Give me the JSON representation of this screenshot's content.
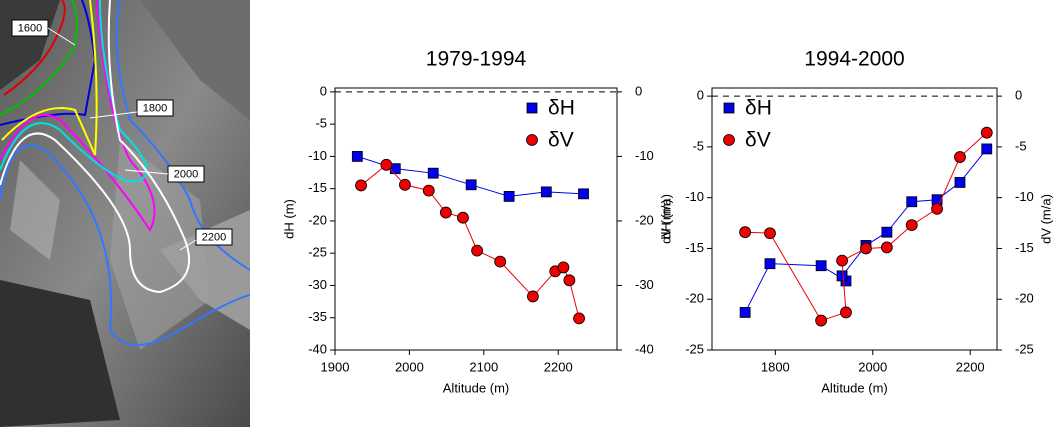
{
  "image": {
    "contour_labels": [
      "1600",
      "1800",
      "2000",
      "2200"
    ]
  },
  "chart_data": [
    {
      "type": "line",
      "title": "1979-1994",
      "x_label": "Altitude (m)",
      "y_label": "dH (m)",
      "y2_label": "dV (m/a)",
      "xlim": [
        1900,
        2279
      ],
      "xticks": [
        1900,
        2000,
        2100,
        2200
      ],
      "ylim": [
        -40,
        0.6
      ],
      "yticks": [
        0,
        -5,
        -10,
        -15,
        -20,
        -25,
        -30,
        -35,
        -40
      ],
      "y2lim": [
        -40,
        0.6
      ],
      "y2ticks": [
        0,
        -10,
        -20,
        -30,
        -40
      ],
      "zero_line": true,
      "legend": "upper right",
      "series": [
        {
          "name": "δH",
          "color": "#0000ee",
          "marker": "square",
          "x": [
            1930,
            1981,
            2032,
            2083,
            2134,
            2184,
            2234
          ],
          "values": [
            -10,
            -11.9,
            -12.6,
            -14.4,
            -16.2,
            -15.5,
            -15.8
          ]
        },
        {
          "name": "δV",
          "color": "#ee0000",
          "marker": "circle",
          "axis": "y2",
          "x": [
            1935,
            1969,
            1994,
            2026,
            2049,
            2072,
            2091,
            2122,
            2166,
            2196,
            2207,
            2215,
            2228
          ],
          "values": [
            -14.5,
            -11.3,
            -14.4,
            -15.3,
            -18.7,
            -19.5,
            -24.6,
            -26.3,
            -31.7,
            -27.8,
            -27.2,
            -29.2,
            -35.1
          ]
        }
      ]
    },
    {
      "type": "line",
      "title": "1994-2000",
      "x_label": "Altitude (m)",
      "y_label": "dH (m)",
      "y2_label": "dV (m/a)",
      "xlim": [
        1670,
        2255
      ],
      "xticks": [
        1800,
        2000,
        2200
      ],
      "ylim": [
        -25,
        0.8
      ],
      "yticks": [
        0,
        -5,
        -10,
        -15,
        -20,
        -25
      ],
      "y2lim": [
        -25,
        0.8
      ],
      "y2ticks": [
        0,
        -5,
        -10,
        -15,
        -20,
        -25
      ],
      "zero_line": true,
      "legend": "upper left",
      "series": [
        {
          "name": "δH",
          "color": "#0000ee",
          "marker": "square",
          "x": [
            1738,
            1789,
            1894,
            1945,
            1937,
            1986,
            2029,
            2080,
            2132,
            2179,
            2234
          ],
          "values": [
            -21.3,
            -16.5,
            -16.7,
            -18.2,
            -17.7,
            -14.7,
            -13.4,
            -10.4,
            -10.2,
            -8.5,
            -5.2
          ]
        },
        {
          "name": "δV",
          "color": "#ee0000",
          "marker": "circle",
          "axis": "y2",
          "x": [
            1738,
            1789,
            1894,
            1945,
            1937,
            1986,
            2029,
            2080,
            2132,
            2179,
            2234
          ],
          "values": [
            -13.4,
            -13.5,
            -22.1,
            -21.3,
            -16.2,
            -15.0,
            -14.9,
            -12.7,
            -11.1,
            -6.0,
            -3.6
          ]
        }
      ]
    }
  ]
}
